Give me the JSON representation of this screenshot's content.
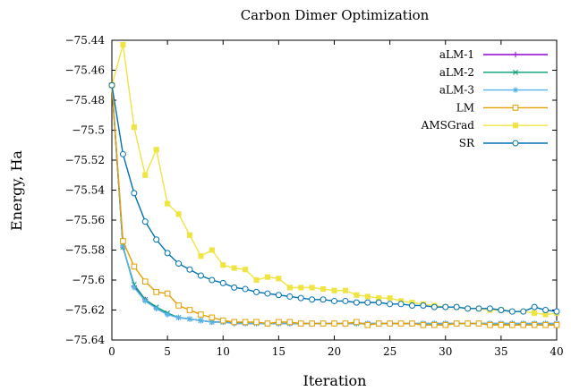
{
  "chart_data": {
    "type": "line",
    "title": "Carbon Dimer Optimization",
    "xlabel": "Iteration",
    "ylabel": "Energy, Ha",
    "xlim": [
      0,
      40
    ],
    "ylim": [
      -75.64,
      -75.44
    ],
    "xticks": [
      0,
      5,
      10,
      15,
      20,
      25,
      30,
      35,
      40
    ],
    "yticks": [
      -75.64,
      -75.62,
      -75.6,
      -75.58,
      -75.56,
      -75.54,
      -75.52,
      -75.5,
      -75.48,
      -75.46,
      -75.44
    ],
    "xtick_labels": [
      "0",
      "5",
      "10",
      "15",
      "20",
      "25",
      "30",
      "35",
      "40"
    ],
    "ytick_labels": [
      "−75.64",
      "−75.62",
      "−75.6",
      "−75.58",
      "−75.56",
      "−75.54",
      "−75.52",
      "−75.5",
      "−75.48",
      "−75.46",
      "−75.44"
    ],
    "grid": false,
    "legend_position": "top-right",
    "x": [
      0,
      1,
      2,
      3,
      4,
      5,
      6,
      7,
      8,
      9,
      10,
      11,
      12,
      13,
      14,
      15,
      16,
      17,
      18,
      19,
      20,
      21,
      22,
      23,
      24,
      25,
      26,
      27,
      28,
      29,
      30,
      31,
      32,
      33,
      34,
      35,
      36,
      37,
      38,
      39,
      40
    ],
    "series": [
      {
        "name": "aLM-1",
        "color": "#9400d3",
        "marker": "plus",
        "values": [
          -75.47,
          -75.578,
          -75.604,
          -75.613,
          -75.619,
          -75.623,
          -75.625,
          -75.626,
          -75.627,
          -75.628,
          -75.628,
          -75.629,
          -75.629,
          -75.629,
          -75.629,
          -75.629,
          -75.629,
          -75.629,
          -75.629,
          -75.629,
          -75.629,
          -75.629,
          -75.629,
          -75.629,
          -75.629,
          -75.629,
          -75.629,
          -75.629,
          -75.629,
          -75.629,
          -75.629,
          -75.629,
          -75.629,
          -75.629,
          -75.629,
          -75.629,
          -75.629,
          -75.629,
          -75.629,
          -75.629,
          -75.629
        ]
      },
      {
        "name": "aLM-2",
        "color": "#009e73",
        "marker": "cross",
        "values": [
          -75.47,
          -75.578,
          -75.603,
          -75.613,
          -75.618,
          -75.622,
          -75.625,
          -75.626,
          -75.627,
          -75.628,
          -75.628,
          -75.628,
          -75.629,
          -75.629,
          -75.629,
          -75.629,
          -75.629,
          -75.629,
          -75.629,
          -75.629,
          -75.629,
          -75.629,
          -75.629,
          -75.629,
          -75.629,
          -75.629,
          -75.629,
          -75.629,
          -75.629,
          -75.629,
          -75.629,
          -75.629,
          -75.629,
          -75.629,
          -75.629,
          -75.629,
          -75.629,
          -75.629,
          -75.629,
          -75.629,
          -75.629
        ]
      },
      {
        "name": "aLM-3",
        "color": "#56b4e9",
        "marker": "star",
        "values": [
          -75.47,
          -75.577,
          -75.605,
          -75.614,
          -75.619,
          -75.623,
          -75.625,
          -75.626,
          -75.627,
          -75.628,
          -75.628,
          -75.629,
          -75.629,
          -75.629,
          -75.629,
          -75.629,
          -75.629,
          -75.629,
          -75.629,
          -75.629,
          -75.629,
          -75.629,
          -75.629,
          -75.629,
          -75.629,
          -75.629,
          -75.629,
          -75.629,
          -75.629,
          -75.629,
          -75.629,
          -75.629,
          -75.629,
          -75.629,
          -75.629,
          -75.629,
          -75.629,
          -75.629,
          -75.629,
          -75.629,
          -75.629
        ]
      },
      {
        "name": "LM",
        "color": "#e69f00",
        "marker": "open-square",
        "values": [
          -75.47,
          -75.574,
          -75.591,
          -75.601,
          -75.608,
          -75.609,
          -75.617,
          -75.62,
          -75.623,
          -75.625,
          -75.627,
          -75.628,
          -75.628,
          -75.628,
          -75.629,
          -75.628,
          -75.628,
          -75.629,
          -75.629,
          -75.629,
          -75.629,
          -75.629,
          -75.628,
          -75.63,
          -75.629,
          -75.629,
          -75.629,
          -75.629,
          -75.63,
          -75.63,
          -75.63,
          -75.629,
          -75.629,
          -75.629,
          -75.63,
          -75.63,
          -75.63,
          -75.63,
          -75.63,
          -75.63,
          -75.63
        ]
      },
      {
        "name": "AMSGrad",
        "color": "#f0e442",
        "marker": "filled-square",
        "values": [
          -75.47,
          -75.443,
          -75.498,
          -75.53,
          -75.513,
          -75.549,
          -75.556,
          -75.57,
          -75.584,
          -75.58,
          -75.59,
          -75.592,
          -75.593,
          -75.6,
          -75.598,
          -75.599,
          -75.605,
          -75.605,
          -75.605,
          -75.606,
          -75.607,
          -75.607,
          -75.61,
          -75.611,
          -75.612,
          -75.612,
          -75.614,
          -75.615,
          -75.616,
          -75.617,
          -75.618,
          -75.618,
          -75.619,
          -75.619,
          -75.62,
          -75.62,
          -75.621,
          -75.621,
          -75.622,
          -75.623,
          -75.622
        ]
      },
      {
        "name": "SR",
        "color": "#0072b2",
        "marker": "open-circle",
        "values": [
          -75.47,
          -75.516,
          -75.542,
          -75.561,
          -75.573,
          -75.582,
          -75.589,
          -75.593,
          -75.597,
          -75.6,
          -75.602,
          -75.605,
          -75.606,
          -75.608,
          -75.609,
          -75.61,
          -75.611,
          -75.612,
          -75.613,
          -75.613,
          -75.614,
          -75.614,
          -75.615,
          -75.615,
          -75.615,
          -75.616,
          -75.616,
          -75.617,
          -75.617,
          -75.618,
          -75.618,
          -75.618,
          -75.619,
          -75.619,
          -75.619,
          -75.62,
          -75.621,
          -75.621,
          -75.618,
          -75.62,
          -75.621
        ]
      }
    ]
  }
}
